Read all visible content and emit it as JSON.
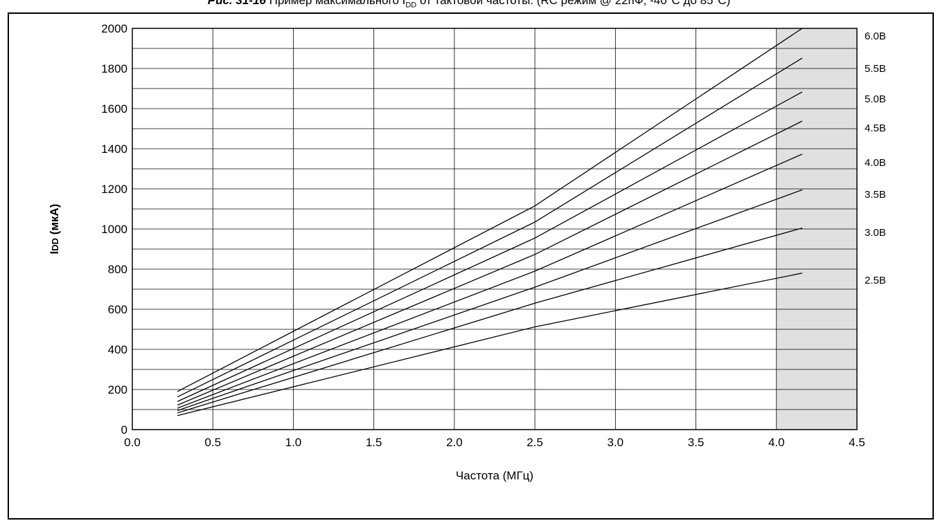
{
  "title": {
    "prefix": "Рис. 31-16",
    "text": "Пример максимального I",
    "sub": "DD",
    "rest": " от тактовой частоты. (RC режим @ 22пФ, -40°C до 85°C)"
  },
  "chart_data": {
    "type": "line",
    "xlabel": "Частота (МГц)",
    "ylabel": "IDD (мкА)",
    "xlim": [
      0,
      4.5
    ],
    "ylim": [
      0,
      2000
    ],
    "x_ticks": [
      "0.0",
      "0.5",
      "1.0",
      "1.5",
      "2.0",
      "2.5",
      "3.0",
      "3.5",
      "4.0",
      "4.5"
    ],
    "y_ticks": [
      "0",
      "200",
      "400",
      "600",
      "800",
      "1000",
      "1200",
      "1400",
      "1600",
      "1800",
      "2000"
    ],
    "grid": true,
    "shaded_region": {
      "x_from": 4.0,
      "x_to": 4.5,
      "color": "#e0e0e0"
    },
    "x": [
      0.28,
      2.5,
      4.16
    ],
    "series": [
      {
        "name": "6.0В",
        "values": [
          190,
          1115,
          2000
        ]
      },
      {
        "name": "5.5В",
        "values": [
          163,
          1035,
          1852
        ]
      },
      {
        "name": "5.0В",
        "values": [
          140,
          955,
          1683
        ]
      },
      {
        "name": "4.5В",
        "values": [
          122,
          873,
          1538
        ]
      },
      {
        "name": "4.0В",
        "values": [
          107,
          790,
          1373
        ]
      },
      {
        "name": "3.5В",
        "values": [
          95,
          710,
          1195
        ]
      },
      {
        "name": "3.0В",
        "values": [
          83,
          630,
          1005
        ]
      },
      {
        "name": "2.5В",
        "values": [
          70,
          512,
          780
        ]
      }
    ]
  }
}
